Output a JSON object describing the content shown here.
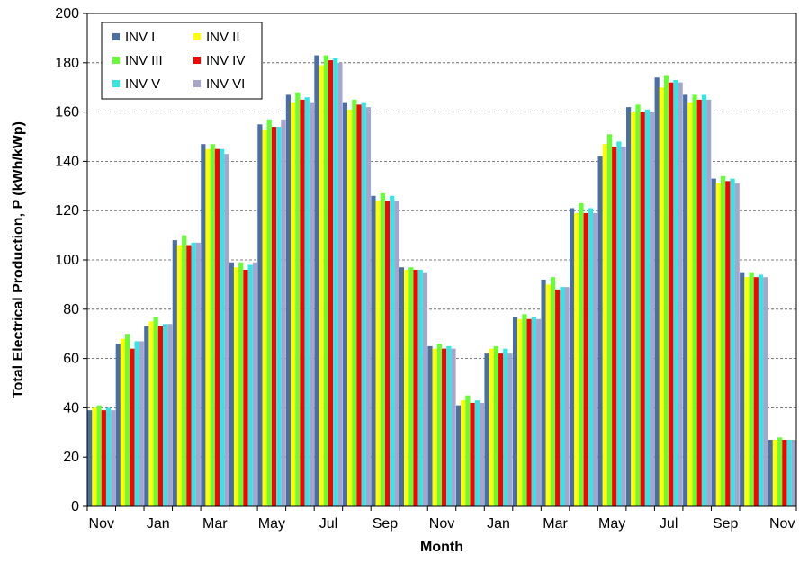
{
  "chart_data": {
    "type": "bar",
    "title": "",
    "xlabel": "Month",
    "ylabel": "Total Electrical Production, P (kWh/kWp)",
    "ylim": [
      0,
      200
    ],
    "yticks": [
      0,
      20,
      40,
      60,
      80,
      100,
      120,
      140,
      160,
      180,
      200
    ],
    "grid": "horizontal dashed",
    "legend_position": "top-left",
    "categories": [
      "Nov",
      "Dec",
      "Jan",
      "Feb",
      "Mar",
      "Apr",
      "May",
      "Jun",
      "Jul",
      "Aug",
      "Sep",
      "Oct",
      "Nov",
      "Dec",
      "Jan",
      "Feb",
      "Mar",
      "Apr",
      "May",
      "Jun",
      "Jul",
      "Aug",
      "Sep",
      "Oct",
      "Nov"
    ],
    "category_labels": [
      "Nov",
      "",
      "Jan",
      "",
      "Mar",
      "",
      "May",
      "",
      "Jul",
      "",
      "Sep",
      "",
      "Nov",
      "",
      "Jan",
      "",
      "Mar",
      "",
      "May",
      "",
      "Jul",
      "",
      "Sep",
      "",
      "Nov"
    ],
    "series": [
      {
        "name": "INV I",
        "color": "#4a6fa5",
        "values": [
          39,
          66,
          73,
          108,
          147,
          99,
          155,
          167,
          183,
          164,
          126,
          97,
          65,
          41,
          62,
          77,
          92,
          121,
          142,
          162,
          174,
          167,
          133,
          95,
          27
        ]
      },
      {
        "name": "INV II",
        "color": "#ffff00",
        "values": [
          40,
          68,
          75,
          106,
          145,
          97,
          153,
          164,
          179,
          161,
          124,
          96,
          64,
          43,
          64,
          76,
          90,
          119,
          147,
          160,
          170,
          164,
          131,
          93,
          27
        ]
      },
      {
        "name": "INV III",
        "color": "#66ff33",
        "values": [
          41,
          70,
          77,
          110,
          147,
          99,
          157,
          168,
          183,
          165,
          127,
          97,
          66,
          45,
          65,
          78,
          93,
          123,
          151,
          163,
          175,
          167,
          134,
          95,
          28
        ]
      },
      {
        "name": "INV IV",
        "color": "#ff0000",
        "values": [
          39,
          64,
          73,
          106,
          145,
          96,
          154,
          165,
          181,
          163,
          124,
          96,
          64,
          42,
          62,
          76,
          88,
          119,
          146,
          160,
          172,
          165,
          132,
          93,
          27
        ]
      },
      {
        "name": "INV V",
        "color": "#33e6e6",
        "values": [
          40,
          67,
          74,
          107,
          145,
          98,
          154,
          166,
          182,
          164,
          126,
          96,
          65,
          43,
          64,
          77,
          89,
          121,
          148,
          161,
          173,
          167,
          133,
          94,
          27
        ]
      },
      {
        "name": "INV VI",
        "color": "#a6a6cc",
        "values": [
          39,
          67,
          74,
          107,
          143,
          99,
          157,
          164,
          180,
          162,
          124,
          95,
          64,
          42,
          62,
          76,
          89,
          119,
          146,
          160,
          172,
          165,
          131,
          93,
          27
        ]
      }
    ]
  }
}
